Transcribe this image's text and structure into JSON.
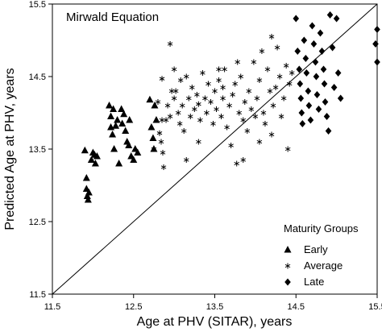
{
  "chart_data": {
    "type": "scatter",
    "title": "Mirwald Equation",
    "xlabel": "Age at PHV (SITAR), years",
    "ylabel": "Predicted Age at PHV, years",
    "xlim": [
      11.5,
      15.5
    ],
    "ylim": [
      11.5,
      15.5
    ],
    "x_ticks": [
      "11.5",
      "12.5",
      "13.5",
      "14.5",
      "15.5"
    ],
    "y_ticks": [
      "11.5",
      "12.5",
      "13.5",
      "14.5",
      "15.5"
    ],
    "grid": false,
    "legend_title": "Maturity Groups",
    "legend_position": "bottom-right",
    "reference_line": "identity",
    "series": [
      {
        "name": "Early",
        "marker": "triangle",
        "points": [
          [
            11.9,
            13.48
          ],
          [
            11.92,
            13.1
          ],
          [
            11.92,
            12.95
          ],
          [
            11.93,
            12.85
          ],
          [
            11.94,
            12.8
          ],
          [
            11.95,
            12.9
          ],
          [
            11.98,
            13.35
          ],
          [
            12.0,
            13.45
          ],
          [
            12.02,
            13.42
          ],
          [
            12.03,
            13.3
          ],
          [
            12.05,
            13.4
          ],
          [
            12.2,
            14.1
          ],
          [
            12.22,
            13.95
          ],
          [
            12.22,
            13.8
          ],
          [
            12.24,
            13.7
          ],
          [
            12.26,
            13.5
          ],
          [
            12.25,
            14.05
          ],
          [
            12.28,
            13.82
          ],
          [
            12.3,
            13.9
          ],
          [
            12.32,
            13.3
          ],
          [
            12.35,
            14.05
          ],
          [
            12.36,
            13.85
          ],
          [
            12.38,
            13.98
          ],
          [
            12.4,
            13.75
          ],
          [
            12.42,
            13.6
          ],
          [
            12.44,
            13.55
          ],
          [
            12.45,
            13.9
          ],
          [
            12.47,
            13.4
          ],
          [
            12.5,
            13.35
          ],
          [
            12.52,
            13.5
          ],
          [
            12.55,
            13.45
          ],
          [
            12.7,
            14.18
          ],
          [
            12.72,
            13.8
          ],
          [
            12.74,
            13.65
          ],
          [
            12.75,
            13.5
          ],
          [
            12.76,
            14.1
          ],
          [
            12.78,
            13.9
          ]
        ]
      },
      {
        "name": "Average",
        "marker": "asterisk",
        "points": [
          [
            12.75,
            13.5
          ],
          [
            12.8,
            14.15
          ],
          [
            12.82,
            13.72
          ],
          [
            12.84,
            13.6
          ],
          [
            12.85,
            14.47
          ],
          [
            12.86,
            13.45
          ],
          [
            12.87,
            13.25
          ],
          [
            12.9,
            13.9
          ],
          [
            12.92,
            14.1
          ],
          [
            12.95,
            13.95
          ],
          [
            12.97,
            14.3
          ],
          [
            13.0,
            14.2
          ],
          [
            13.0,
            14.6
          ],
          [
            13.02,
            14.3
          ],
          [
            13.05,
            14.0
          ],
          [
            13.07,
            13.85
          ],
          [
            13.08,
            14.45
          ],
          [
            13.1,
            14.1
          ],
          [
            13.12,
            13.75
          ],
          [
            13.15,
            14.5
          ],
          [
            13.18,
            14.2
          ],
          [
            13.2,
            13.95
          ],
          [
            13.22,
            14.35
          ],
          [
            13.25,
            14.05
          ],
          [
            13.28,
            14.25
          ],
          [
            13.3,
            14.12
          ],
          [
            13.32,
            13.9
          ],
          [
            13.35,
            14.55
          ],
          [
            13.38,
            14.2
          ],
          [
            13.4,
            14.0
          ],
          [
            13.42,
            14.4
          ],
          [
            13.45,
            14.15
          ],
          [
            13.48,
            13.85
          ],
          [
            13.5,
            14.3
          ],
          [
            13.52,
            14.05
          ],
          [
            13.55,
            14.45
          ],
          [
            13.58,
            13.95
          ],
          [
            13.6,
            14.2
          ],
          [
            13.62,
            14.6
          ],
          [
            13.65,
            13.8
          ],
          [
            13.68,
            14.1
          ],
          [
            13.7,
            13.55
          ],
          [
            13.72,
            14.25
          ],
          [
            13.75,
            14.4
          ],
          [
            13.77,
            13.3
          ],
          [
            13.8,
            14.0
          ],
          [
            13.82,
            14.5
          ],
          [
            13.85,
            13.9
          ],
          [
            13.87,
            14.15
          ],
          [
            13.9,
            13.75
          ],
          [
            13.92,
            14.3
          ],
          [
            13.95,
            14.05
          ],
          [
            13.98,
            14.7
          ],
          [
            14.0,
            13.95
          ],
          [
            14.02,
            14.2
          ],
          [
            14.05,
            14.45
          ],
          [
            14.08,
            14.85
          ],
          [
            14.1,
            14.0
          ],
          [
            14.12,
            13.85
          ],
          [
            14.15,
            14.6
          ],
          [
            14.18,
            14.3
          ],
          [
            14.2,
            13.7
          ],
          [
            14.22,
            14.1
          ],
          [
            14.25,
            14.35
          ],
          [
            14.27,
            14.9
          ],
          [
            14.3,
            14.5
          ],
          [
            14.32,
            13.95
          ],
          [
            14.35,
            14.2
          ],
          [
            14.38,
            14.65
          ],
          [
            14.4,
            13.5
          ],
          [
            14.42,
            14.4
          ],
          [
            14.45,
            14.55
          ],
          [
            12.95,
            14.95
          ],
          [
            13.55,
            14.6
          ],
          [
            13.78,
            14.7
          ],
          [
            14.2,
            15.05
          ],
          [
            13.15,
            13.35
          ],
          [
            13.85,
            13.35
          ],
          [
            13.3,
            13.6
          ],
          [
            14.05,
            13.6
          ],
          [
            12.85,
            13.9
          ],
          [
            13.6,
            14.35
          ]
        ]
      },
      {
        "name": "Late",
        "marker": "diamond",
        "points": [
          [
            14.5,
            15.3
          ],
          [
            14.52,
            14.85
          ],
          [
            14.54,
            14.6
          ],
          [
            14.55,
            14.4
          ],
          [
            14.56,
            14.2
          ],
          [
            14.57,
            14.0
          ],
          [
            14.58,
            13.85
          ],
          [
            14.6,
            15.0
          ],
          [
            14.62,
            14.75
          ],
          [
            14.63,
            14.55
          ],
          [
            14.65,
            14.3
          ],
          [
            14.66,
            14.1
          ],
          [
            14.68,
            13.9
          ],
          [
            14.7,
            15.2
          ],
          [
            14.72,
            14.95
          ],
          [
            14.74,
            14.7
          ],
          [
            14.75,
            14.5
          ],
          [
            14.76,
            14.25
          ],
          [
            14.78,
            14.05
          ],
          [
            14.8,
            15.1
          ],
          [
            14.82,
            14.85
          ],
          [
            14.84,
            14.6
          ],
          [
            14.85,
            14.4
          ],
          [
            14.86,
            14.15
          ],
          [
            14.88,
            13.95
          ],
          [
            14.9,
            13.75
          ],
          [
            14.92,
            15.35
          ],
          [
            14.95,
            14.9
          ],
          [
            14.97,
            14.35
          ],
          [
            15.0,
            15.3
          ],
          [
            15.02,
            14.55
          ],
          [
            15.05,
            14.2
          ],
          [
            15.48,
            14.95
          ],
          [
            15.5,
            14.7
          ],
          [
            15.5,
            15.15
          ]
        ]
      }
    ]
  }
}
